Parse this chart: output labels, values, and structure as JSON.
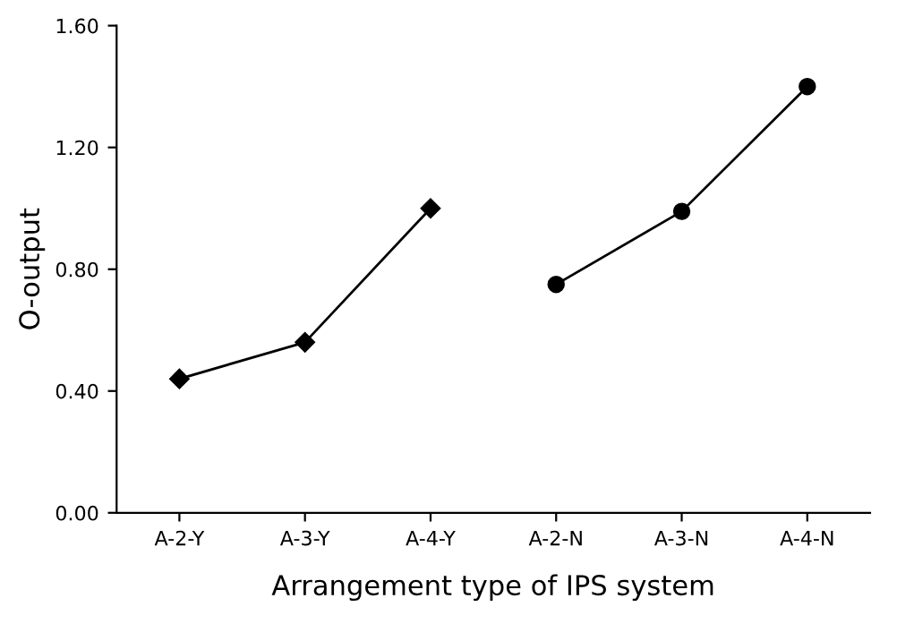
{
  "chart_data": {
    "type": "line",
    "xlabel": "Arrangement type of IPS system",
    "ylabel": "O-output",
    "categories": [
      "A-2-Y",
      "A-3-Y",
      "A-4-Y",
      "A-2-N",
      "A-3-N",
      "A-4-N"
    ],
    "series": [
      {
        "color": "#000000",
        "marker": "diamond",
        "values": [
          0.44,
          0.56,
          1.0,
          null,
          null,
          null
        ]
      },
      {
        "color": "#000000",
        "marker": "circle",
        "values": [
          null,
          null,
          null,
          0.75,
          0.99,
          1.4
        ]
      }
    ],
    "ylim": [
      0,
      1.6
    ],
    "yticks": [
      {
        "value": 0,
        "label": "0.00"
      },
      {
        "value": 0.4,
        "label": "0.40"
      },
      {
        "value": 0.8,
        "label": "0.80"
      },
      {
        "value": 1.2,
        "label": "1.20"
      },
      {
        "value": 1.6,
        "label": "1.60"
      }
    ],
    "grid": false,
    "legend": false,
    "line_style": "solid"
  }
}
